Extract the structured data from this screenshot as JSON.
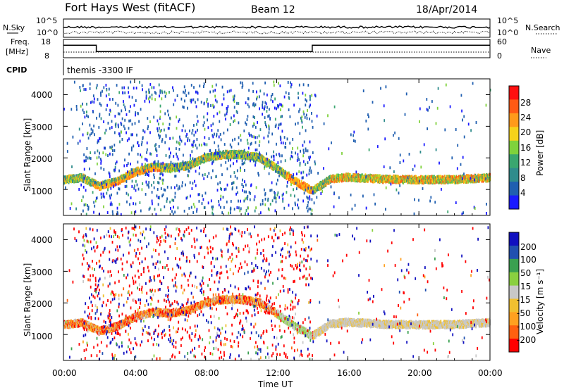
{
  "header": {
    "station": "Fort Hays West (fitACF)",
    "beam": "Beam 12",
    "date": "18/Apr/2014"
  },
  "summary": {
    "nsky_label": "N.Sky",
    "nsky_ticks": [
      "10^5",
      "10^0"
    ],
    "nsearch_label": "N.Search",
    "nsearch_ticks": [
      "10^5",
      "10^0"
    ],
    "freq_label_1": "Freq.",
    "freq_label_2": "[MHz]",
    "freq_ticks": [
      "18",
      "8"
    ],
    "nave_label": "Nave",
    "nave_ticks": [
      "60",
      "0"
    ],
    "cpid_label": "CPID",
    "cpid_text": "themis -3300 IF",
    "freq_steps": [
      {
        "t": 0,
        "f": 14.8
      },
      {
        "t": 1.85,
        "f": 11.4
      },
      {
        "t": 14.0,
        "f": 14.8
      },
      {
        "t": 24,
        "f": 14.8
      }
    ]
  },
  "panels": {
    "power": {
      "ylabel": "Slant Range [km]",
      "yticks": [
        "1000",
        "2000",
        "3000",
        "4000"
      ],
      "cbar_label": "Power [dB]",
      "cbar_ticks": [
        "28",
        "24",
        "20",
        "16",
        "12",
        "8",
        "4"
      ]
    },
    "velocity": {
      "ylabel": "Slant Range [km]",
      "yticks": [
        "1000",
        "2000",
        "3000",
        "4000"
      ],
      "cbar_label": "Velocity [m s⁻¹]",
      "cbar_ticks": [
        "200",
        "100",
        "50",
        "15",
        "-15",
        "-50",
        "-100",
        "-200"
      ]
    }
  },
  "xaxis": {
    "label": "Time UT",
    "ticks": [
      "00:00",
      "04:00",
      "08:00",
      "12:00",
      "16:00",
      "20:00",
      "00:00"
    ]
  },
  "chart_data": [
    {
      "type": "heatmap",
      "name": "power",
      "x_unit": "hours UT",
      "y_unit": "km",
      "xlim": [
        0,
        24
      ],
      "ylim": [
        180,
        4500
      ],
      "color_scale": [
        "#1a1aff",
        "#205fb0",
        "#2f8c8c",
        "#3aa66f",
        "#7fd23c",
        "#f5d21a",
        "#ff9a1a",
        "#ff5a14",
        "#ff1010"
      ],
      "color_ticks": [
        4,
        8,
        12,
        16,
        20,
        24,
        28
      ],
      "band": [
        [
          0,
          1350
        ],
        [
          1,
          1420
        ],
        [
          2,
          1150
        ],
        [
          3,
          1300
        ],
        [
          4,
          1600
        ],
        [
          5,
          1750
        ],
        [
          6,
          1720
        ],
        [
          7,
          1800
        ],
        [
          8,
          2050
        ],
        [
          9,
          2150
        ],
        [
          10,
          2150
        ],
        [
          11,
          2050
        ],
        [
          12,
          1700
        ],
        [
          13,
          1300
        ],
        [
          14,
          1000
        ],
        [
          15,
          1380
        ],
        [
          16,
          1430
        ],
        [
          18,
          1370
        ],
        [
          20,
          1350
        ],
        [
          22,
          1360
        ],
        [
          24,
          1420
        ]
      ]
    },
    {
      "type": "heatmap",
      "name": "velocity",
      "x_unit": "hours UT",
      "y_unit": "km",
      "xlim": [
        0,
        24
      ],
      "ylim": [
        180,
        4500
      ],
      "color_scale": [
        "#ff0000",
        "#ff6010",
        "#ffa020",
        "#f0c030",
        "#c8c8c8",
        "#8ad040",
        "#3aa050",
        "#2050b0",
        "#1010c0"
      ],
      "color_ticks": [
        200,
        100,
        50,
        15,
        -15,
        -50,
        -100,
        -200
      ],
      "band": [
        [
          0,
          1350
        ],
        [
          1,
          1420
        ],
        [
          2,
          1150
        ],
        [
          3,
          1300
        ],
        [
          4,
          1600
        ],
        [
          5,
          1750
        ],
        [
          6,
          1720
        ],
        [
          7,
          1800
        ],
        [
          8,
          2050
        ],
        [
          9,
          2150
        ],
        [
          10,
          2150
        ],
        [
          11,
          2050
        ],
        [
          12,
          1700
        ],
        [
          13,
          1300
        ],
        [
          14,
          1000
        ],
        [
          15,
          1380
        ],
        [
          16,
          1430
        ],
        [
          18,
          1370
        ],
        [
          20,
          1350
        ],
        [
          22,
          1360
        ],
        [
          24,
          1420
        ]
      ]
    }
  ]
}
